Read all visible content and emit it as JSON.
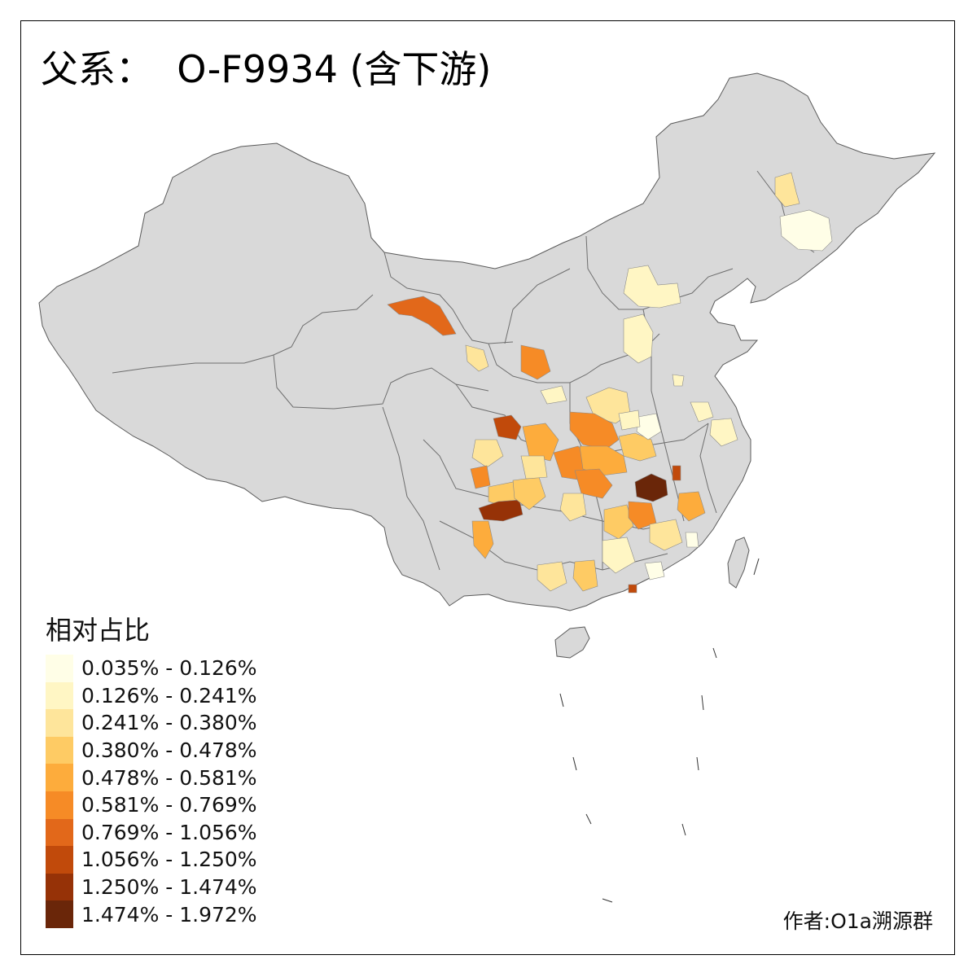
{
  "title": "父系：  O-F9934 (含下游)",
  "legend": {
    "title": "相对占比",
    "items": [
      {
        "label": "0.035% - 0.126%",
        "color": "#fffee7"
      },
      {
        "label": "0.126% - 0.241%",
        "color": "#fff6c4"
      },
      {
        "label": "0.241% - 0.380%",
        "color": "#fee59b"
      },
      {
        "label": "0.380% - 0.478%",
        "color": "#fecb64"
      },
      {
        "label": "0.478% - 0.581%",
        "color": "#fdac3c"
      },
      {
        "label": "0.581% - 0.769%",
        "color": "#f68b26"
      },
      {
        "label": "0.769% - 1.056%",
        "color": "#e2681a"
      },
      {
        "label": "1.056% - 1.250%",
        "color": "#c14a0b"
      },
      {
        "label": "1.250% - 1.474%",
        "color": "#963207"
      },
      {
        "label": "1.474% - 1.972%",
        "color": "#6a2609"
      }
    ]
  },
  "credit": "作者:O1a溯源群",
  "colors": {
    "land": "#d9d9d9",
    "border": "#5a5a5a"
  }
}
